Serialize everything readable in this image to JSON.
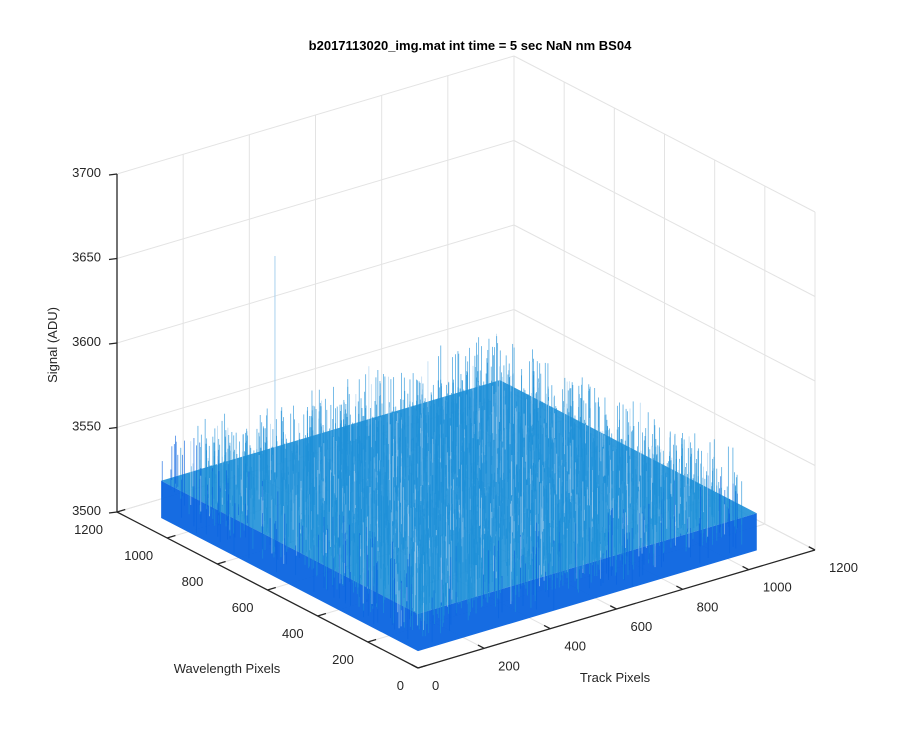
{
  "chart_data": {
    "type": "surface3d",
    "title": "b2017113020_img.mat int time = 5 sec  NaN nm BS04",
    "xlabel": "Track Pixels",
    "ylabel": "Wavelength Pixels",
    "zlabel": "Signal (ADU)",
    "xlim": [
      0,
      1200
    ],
    "ylim": [
      0,
      1200
    ],
    "zlim": [
      3500,
      3700
    ],
    "x_ticks": [
      "0",
      "200",
      "400",
      "600",
      "800",
      "1000",
      "1200"
    ],
    "y_ticks": [
      "0",
      "200",
      "400",
      "600",
      "800",
      "1000",
      "1200"
    ],
    "z_ticks": [
      "3500",
      "3550",
      "3600",
      "3650",
      "3700"
    ],
    "grid": true,
    "surface": {
      "x_range": [
        0,
        1024
      ],
      "y_range": [
        0,
        1024
      ],
      "mean_signal": 3532,
      "noise_range": [
        3510,
        3565
      ],
      "max_peak": 3660,
      "colormap": "parula",
      "colors": {
        "low": "#0a64e0",
        "mid": "#1e90d8",
        "high": "#a8d0ee"
      }
    }
  }
}
